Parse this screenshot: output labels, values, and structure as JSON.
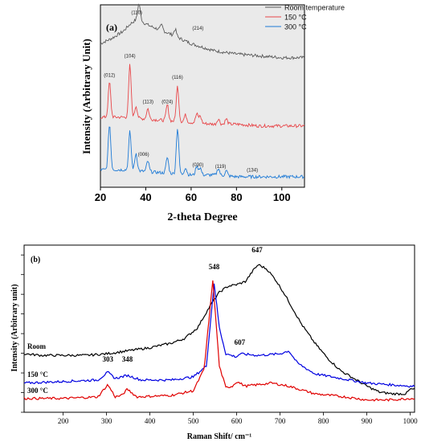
{
  "chart_data": [
    {
      "type": "line",
      "panel_label": "(a)",
      "xlabel": "2-theta Degree",
      "ylabel": "Intensity (Arbitrary Unit)",
      "xlim": [
        20,
        110
      ],
      "xticks": [
        "20",
        "40",
        "60",
        "80",
        "100"
      ],
      "xtick_values": [
        20,
        40,
        60,
        80,
        100
      ],
      "legend_position": "top-right",
      "series": [
        {
          "name": "Room temperature",
          "color": "#5a5a5a",
          "x": [
            20,
            25,
            30,
            33,
            35,
            37,
            39,
            42,
            46,
            50,
            55,
            60,
            65,
            70,
            75,
            80,
            90,
            100,
            110
          ],
          "y": [
            0.82,
            0.85,
            0.89,
            0.93,
            0.95,
            0.97,
            0.94,
            0.92,
            0.9,
            0.88,
            0.85,
            0.82,
            0.8,
            0.78,
            0.77,
            0.76,
            0.75,
            0.74,
            0.74
          ],
          "peaks": [
            [
              37,
              0.08
            ],
            [
              47,
              0.03
            ],
            [
              53,
              0.04
            ]
          ],
          "baseline": 0.62
        },
        {
          "name": "150 °C",
          "color": "#e8474a",
          "x": [
            20,
            30,
            40,
            50,
            60,
            70,
            80,
            90,
            100,
            110
          ],
          "y": [
            0.4,
            0.4,
            0.39,
            0.38,
            0.37,
            0.36,
            0.36,
            0.35,
            0.35,
            0.35
          ],
          "peaks": [
            [
              24,
              0.2
            ],
            [
              33,
              0.3
            ],
            [
              35.7,
              0.07
            ],
            [
              40.9,
              0.06
            ],
            [
              49.5,
              0.09
            ],
            [
              54,
              0.2
            ],
            [
              57.5,
              0.04
            ],
            [
              62.5,
              0.05
            ],
            [
              64,
              0.04
            ],
            [
              72,
              0.03
            ],
            [
              75.5,
              0.03
            ]
          ],
          "baseline": 0.34
        },
        {
          "name": "300 °C",
          "color": "#1f7bd6",
          "x": [
            20,
            30,
            40,
            50,
            60,
            70,
            80,
            90,
            100,
            110
          ],
          "y": [
            0.1,
            0.1,
            0.09,
            0.08,
            0.07,
            0.07,
            0.06,
            0.06,
            0.06,
            0.06
          ],
          "peaks": [
            [
              24,
              0.26
            ],
            [
              33,
              0.22
            ],
            [
              35.7,
              0.1
            ],
            [
              40.9,
              0.06
            ],
            [
              49.5,
              0.09
            ],
            [
              54,
              0.26
            ],
            [
              57.5,
              0.04
            ],
            [
              62.5,
              0.05
            ],
            [
              64,
              0.04
            ],
            [
              72,
              0.04
            ],
            [
              75.5,
              0.03
            ]
          ],
          "baseline": 0.06
        }
      ],
      "annotations": [
        {
          "text": "(110)",
          "x": 36,
          "y": 0.99
        },
        {
          "text": "(214)",
          "x": 63,
          "y": 0.9
        },
        {
          "text": "(012)",
          "x": 24,
          "y": 0.63
        },
        {
          "text": "(104)",
          "x": 33,
          "y": 0.74
        },
        {
          "text": "(113)",
          "x": 41,
          "y": 0.48
        },
        {
          "text": "(024)",
          "x": 49.5,
          "y": 0.48
        },
        {
          "text": "(116)",
          "x": 54,
          "y": 0.62
        },
        {
          "text": "(006)",
          "x": 39,
          "y": 0.18
        },
        {
          "text": "(030)",
          "x": 63,
          "y": 0.12
        },
        {
          "text": "(119)",
          "x": 73,
          "y": 0.11
        },
        {
          "text": "(134)",
          "x": 87,
          "y": 0.09
        }
      ]
    },
    {
      "type": "line",
      "panel_label": "(b)",
      "xlabel": "Raman Shift/ cm⁻¹",
      "ylabel": "Intensity (Arbitrary unit)",
      "xlim": [
        110,
        1010
      ],
      "xticks": [
        "200",
        "300",
        "400",
        "500",
        "600",
        "700",
        "800",
        "900",
        "1000"
      ],
      "xtick_values": [
        200,
        300,
        400,
        500,
        600,
        700,
        800,
        900,
        1000
      ],
      "series": [
        {
          "name": "Room",
          "color": "#000000",
          "x": [
            110,
            150,
            200,
            250,
            300,
            350,
            400,
            450,
            480,
            510,
            530,
            545,
            560,
            580,
            600,
            620,
            640,
            650,
            670,
            690,
            710,
            730,
            750,
            780,
            810,
            840,
            870,
            900,
            930,
            960,
            990,
            1000
          ],
          "y": [
            0.38,
            0.37,
            0.37,
            0.37,
            0.38,
            0.4,
            0.42,
            0.45,
            0.48,
            0.55,
            0.65,
            0.72,
            0.78,
            0.82,
            0.83,
            0.85,
            0.93,
            0.96,
            0.93,
            0.86,
            0.77,
            0.67,
            0.57,
            0.45,
            0.35,
            0.27,
            0.22,
            0.17,
            0.13,
            0.12,
            0.12,
            0.15
          ],
          "peaks": []
        },
        {
          "name": "150 °C",
          "color": "#0000e0",
          "x": [
            110,
            200,
            280,
            303,
            320,
            348,
            380,
            450,
            500,
            530,
            548,
            560,
            575,
            600,
            607,
            650,
            700,
            720,
            740,
            780,
            820,
            860,
            900,
            950,
            1000
          ],
          "y": [
            0.19,
            0.2,
            0.21,
            0.26,
            0.22,
            0.24,
            0.21,
            0.21,
            0.23,
            0.3,
            0.84,
            0.55,
            0.38,
            0.36,
            0.38,
            0.37,
            0.38,
            0.4,
            0.32,
            0.25,
            0.23,
            0.21,
            0.19,
            0.18,
            0.17
          ],
          "peaks": []
        },
        {
          "name": "300 °C",
          "color": "#e00000",
          "x": [
            110,
            200,
            280,
            303,
            320,
            335,
            348,
            370,
            450,
            500,
            525,
            545,
            560,
            575,
            590,
            600,
            620,
            650,
            680,
            720,
            780,
            850,
            900,
            950,
            1000
          ],
          "y": [
            0.09,
            0.09,
            0.1,
            0.18,
            0.1,
            0.11,
            0.15,
            0.1,
            0.11,
            0.14,
            0.28,
            0.86,
            0.3,
            0.16,
            0.17,
            0.2,
            0.17,
            0.18,
            0.19,
            0.17,
            0.12,
            0.1,
            0.08,
            0.08,
            0.09
          ],
          "peaks": []
        }
      ],
      "annotations": [
        {
          "text": "548",
          "x": 548,
          "y": 0.93
        },
        {
          "text": "647",
          "x": 647,
          "y": 1.04
        },
        {
          "text": "607",
          "x": 607,
          "y": 0.44
        },
        {
          "text": "303",
          "x": 303,
          "y": 0.33
        },
        {
          "text": "348",
          "x": 348,
          "y": 0.33
        }
      ],
      "curve_labels": [
        {
          "text": "Room",
          "series": 0
        },
        {
          "text": "150 °C",
          "series": 1
        },
        {
          "text": "300 °C",
          "series": 2
        }
      ]
    }
  ]
}
